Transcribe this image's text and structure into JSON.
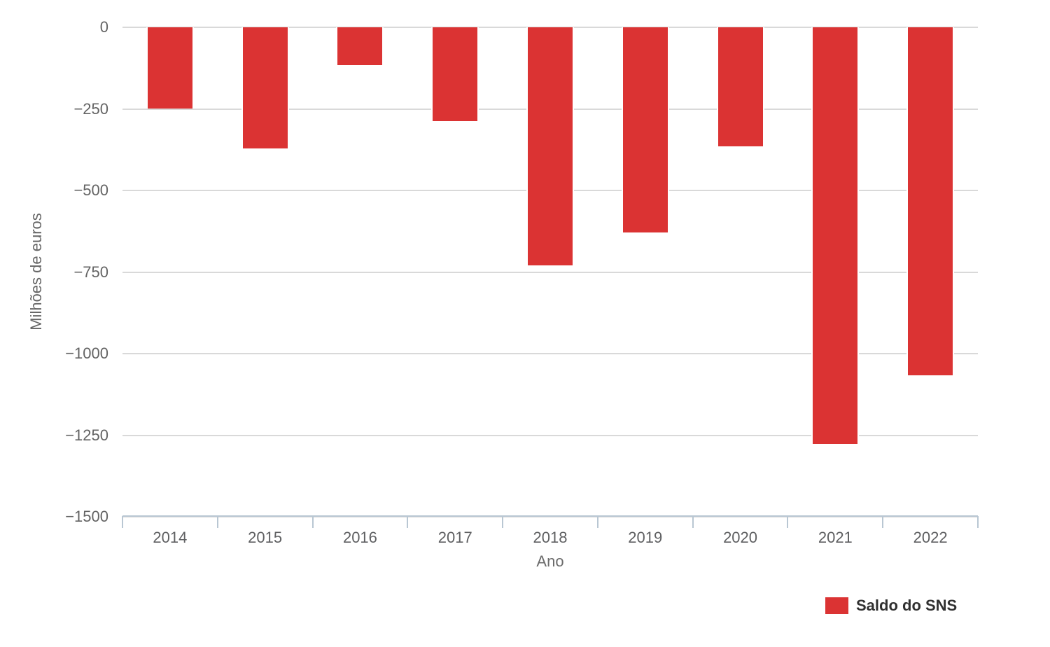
{
  "chart_data": {
    "type": "bar",
    "categories": [
      "2014",
      "2015",
      "2016",
      "2017",
      "2018",
      "2019",
      "2020",
      "2021",
      "2022"
    ],
    "series": [
      {
        "name": "Saldo do SNS",
        "values": [
          -249,
          -371,
          -115,
          -288,
          -730,
          -628,
          -365,
          -1277,
          -1066
        ],
        "color": "#db3333"
      }
    ],
    "title": "",
    "xlabel": "Ano",
    "ylabel": "Milhões de euros",
    "ylim": [
      -1500,
      0
    ],
    "ytick_step": 250,
    "ytick_labels": [
      "0",
      "−250",
      "−500",
      "−750",
      "−1000",
      "−1250",
      "−1500"
    ],
    "grid": true,
    "legend_position": "bottom-right"
  },
  "axes": {
    "x_title": "Ano",
    "y_title": "Milhões de euros"
  },
  "legend": {
    "label": "Saldo do SNS",
    "swatch_color": "#db3333"
  },
  "colors": {
    "bar": "#db3333",
    "gridline": "#d9d9d9",
    "axis_line": "#b9c7d3",
    "tick_label": "#5f6062",
    "axis_title": "#666666",
    "legend_text": "#303030",
    "background": "#ffffff"
  }
}
